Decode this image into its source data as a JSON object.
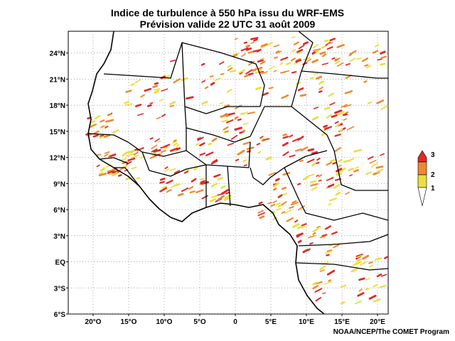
{
  "title": {
    "line1": "Indice de turbulence à 550 hPa issu du WRF-EMS",
    "line2": "Prévision valide 22 UTC 31 août 2009"
  },
  "axes": {
    "lat_ticks": [
      "24°N",
      "21°N",
      "18°N",
      "15°N",
      "12°N",
      "9°N",
      "6°N",
      "3°N",
      "EQ",
      "3°S",
      "6°S"
    ],
    "lon_ticks": [
      "20°O",
      "15°O",
      "10°O",
      "5°O",
      "0",
      "5°E",
      "10°E",
      "15°E",
      "20°E"
    ],
    "lat_range": [
      -6,
      26.5
    ],
    "lon_range": [
      -23.5,
      21.5
    ],
    "grid": "dotted"
  },
  "legend": {
    "labels": [
      "3",
      "2",
      "1"
    ],
    "colors": {
      "level1": "#e8e040",
      "level2": "#f08830",
      "level3": "#e02828"
    }
  },
  "credit": "NOAA/NCEP/The COMET Program"
}
